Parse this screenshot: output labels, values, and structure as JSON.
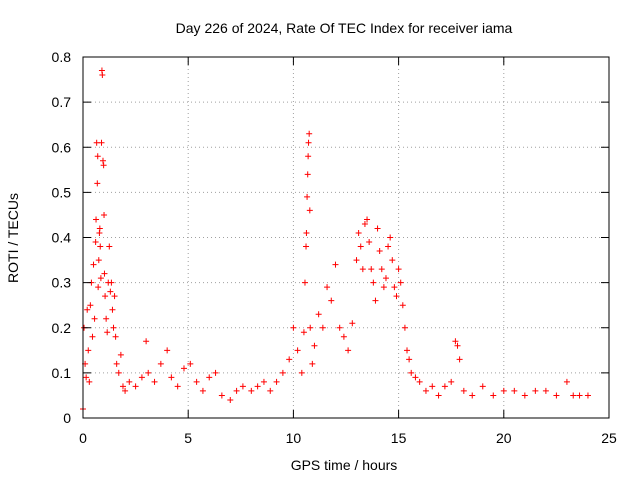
{
  "chart_data": {
    "type": "scatter",
    "title": "Day 226 of 2024, Rate Of TEC Index for receiver iama",
    "xlabel": "GPS time / hours",
    "ylabel": "ROTI / TECUs",
    "xlim": [
      0,
      25
    ],
    "ylim": [
      0,
      0.8
    ],
    "xticks": [
      0,
      5,
      10,
      15,
      20,
      25
    ],
    "yticks": [
      0,
      0.1,
      0.2,
      0.3,
      0.4,
      0.5,
      0.6,
      0.7,
      0.8
    ],
    "xtick_labels": [
      "0",
      "5",
      "10",
      "15",
      "20",
      "25"
    ],
    "ytick_labels": [
      "0",
      "0.1",
      "0.2",
      "0.3",
      "0.4",
      "0.5",
      "0.6",
      "0.7",
      "0.8"
    ],
    "grid": true,
    "marker": "+",
    "marker_color": "#ff0000",
    "series": [
      {
        "points": [
          [
            0.0,
            0.02
          ],
          [
            0.05,
            0.2
          ],
          [
            0.1,
            0.12
          ],
          [
            0.15,
            0.09
          ],
          [
            0.2,
            0.24
          ],
          [
            0.25,
            0.15
          ],
          [
            0.3,
            0.08
          ],
          [
            0.35,
            0.25
          ],
          [
            0.4,
            0.3
          ],
          [
            0.45,
            0.18
          ],
          [
            0.5,
            0.34
          ],
          [
            0.55,
            0.22
          ],
          [
            0.6,
            0.39
          ],
          [
            0.62,
            0.44
          ],
          [
            0.65,
            0.61
          ],
          [
            0.68,
            0.52
          ],
          [
            0.7,
            0.58
          ],
          [
            0.72,
            0.29
          ],
          [
            0.75,
            0.35
          ],
          [
            0.78,
            0.41
          ],
          [
            0.8,
            0.42
          ],
          [
            0.82,
            0.38
          ],
          [
            0.85,
            0.31
          ],
          [
            0.88,
            0.61
          ],
          [
            0.9,
            0.77
          ],
          [
            0.92,
            0.76
          ],
          [
            0.95,
            0.57
          ],
          [
            0.98,
            0.56
          ],
          [
            1.0,
            0.45
          ],
          [
            1.02,
            0.32
          ],
          [
            1.05,
            0.27
          ],
          [
            1.1,
            0.22
          ],
          [
            1.15,
            0.19
          ],
          [
            1.2,
            0.3
          ],
          [
            1.25,
            0.38
          ],
          [
            1.3,
            0.28
          ],
          [
            1.35,
            0.3
          ],
          [
            1.4,
            0.24
          ],
          [
            1.45,
            0.2
          ],
          [
            1.5,
            0.27
          ],
          [
            1.55,
            0.18
          ],
          [
            1.6,
            0.12
          ],
          [
            1.7,
            0.1
          ],
          [
            1.8,
            0.14
          ],
          [
            1.9,
            0.07
          ],
          [
            2.0,
            0.06
          ],
          [
            2.2,
            0.08
          ],
          [
            2.5,
            0.07
          ],
          [
            2.8,
            0.09
          ],
          [
            3.0,
            0.17
          ],
          [
            3.1,
            0.1
          ],
          [
            3.4,
            0.08
          ],
          [
            3.7,
            0.12
          ],
          [
            4.0,
            0.15
          ],
          [
            4.2,
            0.09
          ],
          [
            4.5,
            0.07
          ],
          [
            4.8,
            0.11
          ],
          [
            5.1,
            0.12
          ],
          [
            5.4,
            0.08
          ],
          [
            5.7,
            0.06
          ],
          [
            6.0,
            0.09
          ],
          [
            6.3,
            0.1
          ],
          [
            6.6,
            0.05
          ],
          [
            7.0,
            0.04
          ],
          [
            7.3,
            0.06
          ],
          [
            7.6,
            0.07
          ],
          [
            8.0,
            0.06
          ],
          [
            8.3,
            0.07
          ],
          [
            8.6,
            0.08
          ],
          [
            8.9,
            0.06
          ],
          [
            9.2,
            0.08
          ],
          [
            9.5,
            0.1
          ],
          [
            9.8,
            0.13
          ],
          [
            10.0,
            0.2
          ],
          [
            10.2,
            0.15
          ],
          [
            10.4,
            0.1
          ],
          [
            10.5,
            0.19
          ],
          [
            10.55,
            0.3
          ],
          [
            10.6,
            0.38
          ],
          [
            10.62,
            0.41
          ],
          [
            10.65,
            0.49
          ],
          [
            10.68,
            0.54
          ],
          [
            10.7,
            0.58
          ],
          [
            10.72,
            0.61
          ],
          [
            10.75,
            0.63
          ],
          [
            10.78,
            0.46
          ],
          [
            10.8,
            0.2
          ],
          [
            10.9,
            0.12
          ],
          [
            11.0,
            0.16
          ],
          [
            11.2,
            0.23
          ],
          [
            11.4,
            0.2
          ],
          [
            11.6,
            0.29
          ],
          [
            11.8,
            0.26
          ],
          [
            12.0,
            0.34
          ],
          [
            12.2,
            0.2
          ],
          [
            12.4,
            0.18
          ],
          [
            12.6,
            0.15
          ],
          [
            12.8,
            0.21
          ],
          [
            13.0,
            0.35
          ],
          [
            13.1,
            0.41
          ],
          [
            13.2,
            0.38
          ],
          [
            13.3,
            0.33
          ],
          [
            13.4,
            0.43
          ],
          [
            13.5,
            0.44
          ],
          [
            13.6,
            0.39
          ],
          [
            13.7,
            0.33
          ],
          [
            13.8,
            0.3
          ],
          [
            13.9,
            0.26
          ],
          [
            14.0,
            0.42
          ],
          [
            14.1,
            0.37
          ],
          [
            14.2,
            0.33
          ],
          [
            14.3,
            0.29
          ],
          [
            14.4,
            0.31
          ],
          [
            14.5,
            0.38
          ],
          [
            14.6,
            0.4
          ],
          [
            14.7,
            0.35
          ],
          [
            14.8,
            0.29
          ],
          [
            14.9,
            0.27
          ],
          [
            15.0,
            0.33
          ],
          [
            15.1,
            0.3
          ],
          [
            15.2,
            0.25
          ],
          [
            15.3,
            0.2
          ],
          [
            15.4,
            0.15
          ],
          [
            15.5,
            0.13
          ],
          [
            15.6,
            0.1
          ],
          [
            15.8,
            0.09
          ],
          [
            16.0,
            0.08
          ],
          [
            16.3,
            0.06
          ],
          [
            16.6,
            0.07
          ],
          [
            16.9,
            0.05
          ],
          [
            17.2,
            0.07
          ],
          [
            17.5,
            0.08
          ],
          [
            17.7,
            0.17
          ],
          [
            17.8,
            0.16
          ],
          [
            17.9,
            0.13
          ],
          [
            18.1,
            0.06
          ],
          [
            18.5,
            0.05
          ],
          [
            19.0,
            0.07
          ],
          [
            19.5,
            0.05
          ],
          [
            20.0,
            0.06
          ],
          [
            20.5,
            0.06
          ],
          [
            21.0,
            0.05
          ],
          [
            21.5,
            0.06
          ],
          [
            22.0,
            0.06
          ],
          [
            22.5,
            0.05
          ],
          [
            23.0,
            0.08
          ],
          [
            23.3,
            0.05
          ],
          [
            23.6,
            0.05
          ],
          [
            24.0,
            0.05
          ]
        ]
      }
    ]
  }
}
